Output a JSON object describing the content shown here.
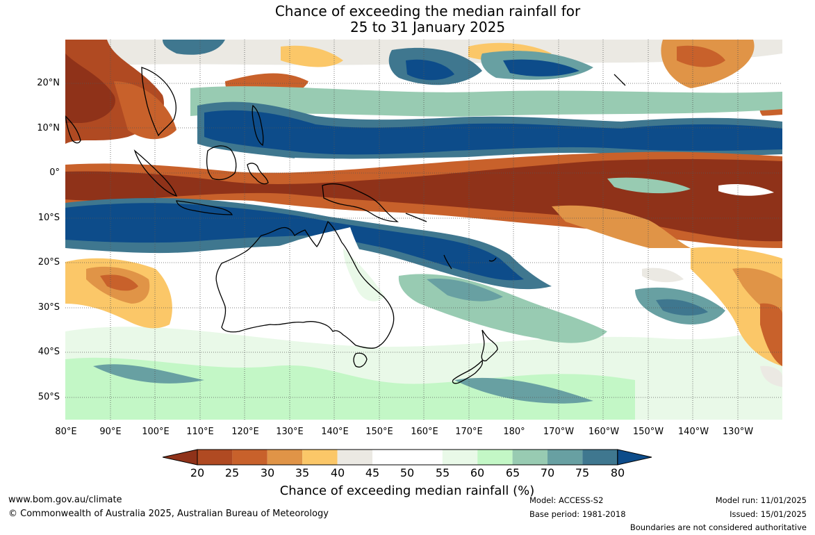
{
  "title_line1": "Chance of exceeding the median rainfall for",
  "title_line2": "25 to 31 January 2025",
  "lat_ticks": [
    "20°N",
    "10°N",
    "0°",
    "10°S",
    "20°S",
    "30°S",
    "40°S",
    "50°S"
  ],
  "lon_ticks": [
    "80°E",
    "90°E",
    "100°E",
    "110°E",
    "120°E",
    "130°E",
    "140°E",
    "150°E",
    "160°E",
    "170°E",
    "180°",
    "170°W",
    "160°W",
    "150°W",
    "140°W",
    "130°W"
  ],
  "colorbar": {
    "label": "Chance of exceeding median rainfall (%)",
    "ticks": [
      "20",
      "25",
      "30",
      "35",
      "40",
      "45",
      "50",
      "55",
      "60",
      "65",
      "70",
      "75",
      "80"
    ],
    "colors": [
      "#8f3219",
      "#b04a22",
      "#c8612b",
      "#e09447",
      "#fbc768",
      "#ebe9e3",
      "#ffffff",
      "#ffffff",
      "#e9f9e8",
      "#c3f7c6",
      "#98cbb2",
      "#68a0a2",
      "#3f778f",
      "#0d4c8a"
    ]
  },
  "footer": {
    "url": "www.bom.gov.au/climate",
    "copyright": "© Commonwealth of Australia 2025, Australian Bureau of Meteorology",
    "model": "Model: ACCESS-S2",
    "base_period": "Base period: 1981-2018",
    "model_run": "Model run: 11/01/2025",
    "issued": "Issued: 15/01/2025",
    "disclaimer": "Boundaries are not considered authoritative"
  }
}
